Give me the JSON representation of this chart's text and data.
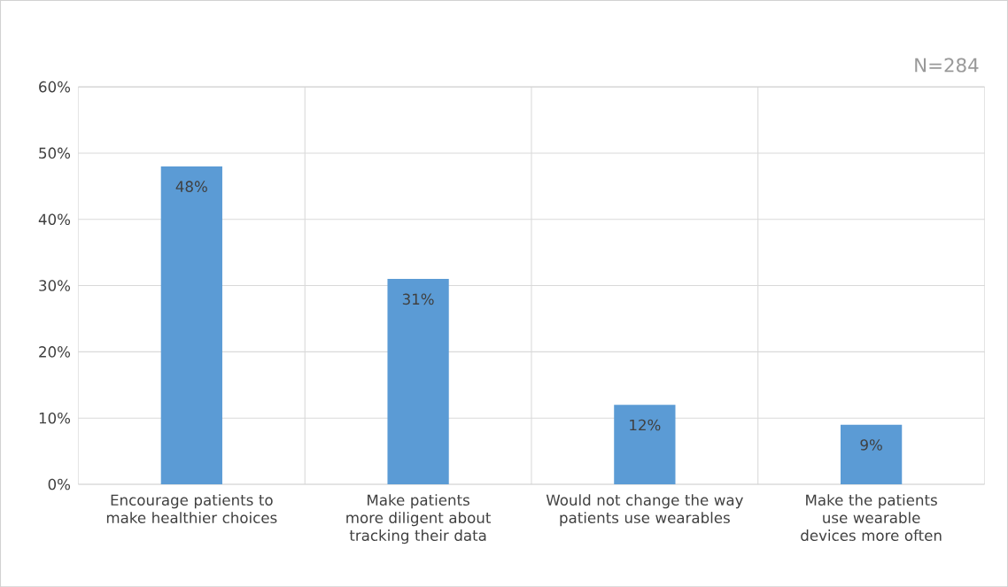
{
  "chart_data": {
    "type": "bar",
    "categories": [
      "Encourage patients to make healthier choices",
      "Make patients more diligent about tracking their data",
      "Would not change the way patients use wearables",
      "Make the patients use wearable devices more often"
    ],
    "values": [
      48,
      31,
      12,
      9
    ],
    "value_labels": [
      "48%",
      "31%",
      "12%",
      "9%"
    ],
    "color": "#5b9bd5",
    "ylim": [
      0,
      60
    ],
    "yticks": [
      {
        "value": 0,
        "label": "0%"
      },
      {
        "value": 10,
        "label": "10%"
      },
      {
        "value": 20,
        "label": "20%"
      },
      {
        "value": 30,
        "label": "30%"
      },
      {
        "value": 40,
        "label": "40%"
      },
      {
        "value": 50,
        "label": "50%"
      },
      {
        "value": 60,
        "label": "60%"
      }
    ],
    "grid": true,
    "annotations": [
      "N=284"
    ]
  }
}
